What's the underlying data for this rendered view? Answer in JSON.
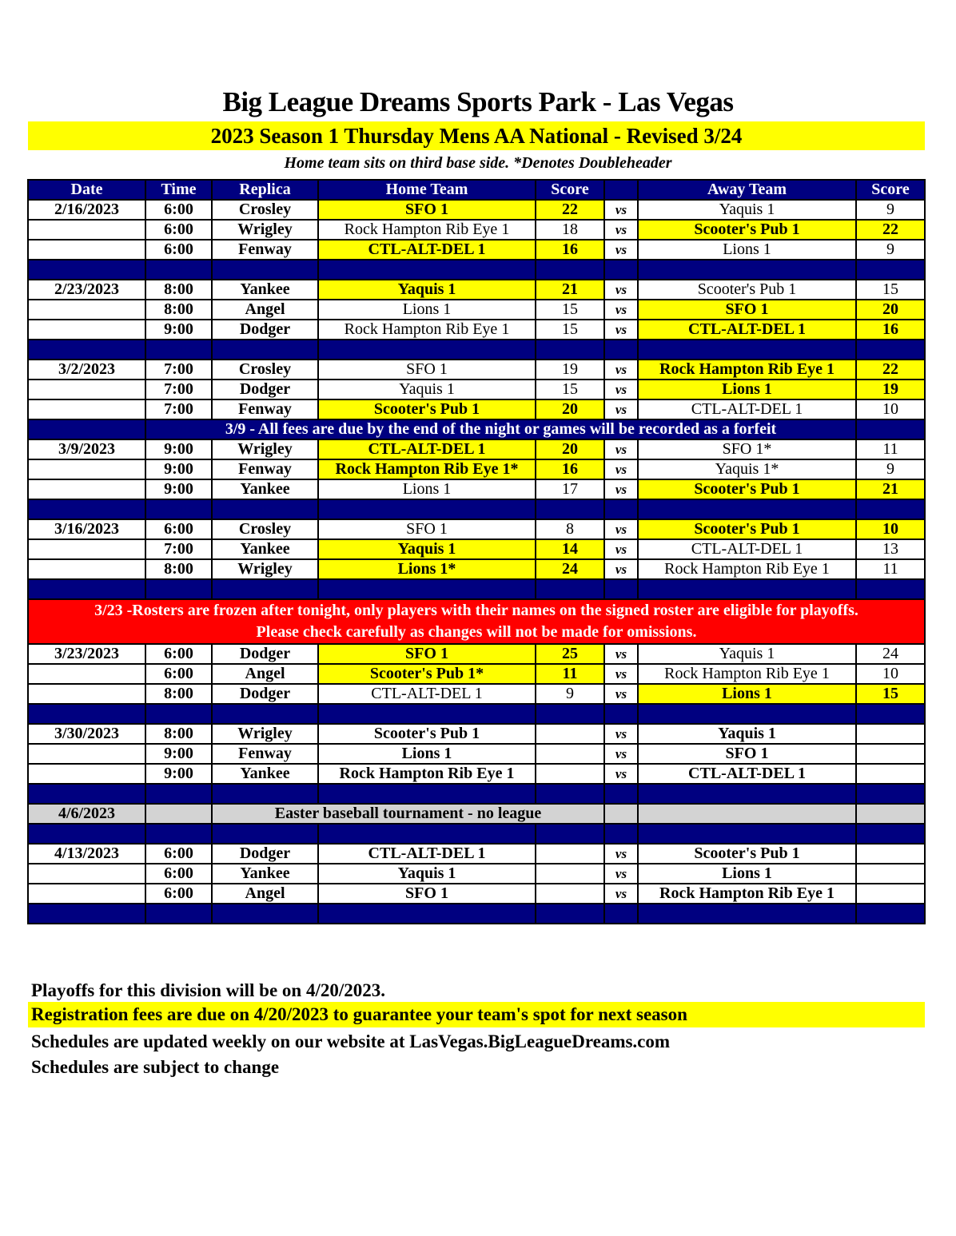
{
  "title": "Big League Dreams Sports Park - Las Vegas",
  "subtitle": "2023 Season 1 Thursday Mens AA National - Revised 3/24",
  "note": "Home team sits on third base side.  *Denotes Doubleheader",
  "colors": {
    "header": "#000080",
    "highlight": "#ffff00",
    "alert": "#ff0000",
    "off": "#d3d3d3"
  },
  "headers": [
    "Date",
    "Time",
    "Replica",
    "Home Team",
    "Score",
    "",
    "Away Team",
    "Score"
  ],
  "rows": [
    {
      "type": "game",
      "date": "2/16/2023",
      "time": "6:00",
      "field": "Crosley",
      "home": "SFO 1",
      "hs": "22",
      "vs": "vs",
      "away": "Yaquis 1",
      "as": "9",
      "winner": "home"
    },
    {
      "type": "game",
      "date": "",
      "time": "6:00",
      "field": "Wrigley",
      "home": "Rock Hampton Rib Eye 1",
      "hs": "18",
      "vs": "vs",
      "away": "Scooter's Pub 1",
      "as": "22",
      "winner": "away"
    },
    {
      "type": "game",
      "date": "",
      "time": "6:00",
      "field": "Fenway",
      "home": "CTL-ALT-DEL 1",
      "hs": "16",
      "vs": "vs",
      "away": "Lions 1",
      "as": "9",
      "winner": "home"
    },
    {
      "type": "blank"
    },
    {
      "type": "game",
      "date": "2/23/2023",
      "time": "8:00",
      "field": "Yankee",
      "home": "Yaquis 1",
      "hs": "21",
      "vs": "vs",
      "away": "Scooter's Pub 1",
      "as": "15",
      "winner": "home"
    },
    {
      "type": "game",
      "date": "",
      "time": "8:00",
      "field": "Angel",
      "home": "Lions 1",
      "hs": "15",
      "vs": "vs",
      "away": "SFO 1",
      "as": "20",
      "winner": "away"
    },
    {
      "type": "game",
      "date": "",
      "time": "9:00",
      "field": "Dodger",
      "home": "Rock Hampton Rib Eye 1",
      "hs": "15",
      "vs": "vs",
      "away": "CTL-ALT-DEL 1",
      "as": "16",
      "winner": "away"
    },
    {
      "type": "blank"
    },
    {
      "type": "game",
      "date": "3/2/2023",
      "time": "7:00",
      "field": "Crosley",
      "home": "SFO 1",
      "hs": "19",
      "vs": "vs",
      "away": "Rock Hampton Rib Eye 1",
      "as": "22",
      "winner": "away"
    },
    {
      "type": "game",
      "date": "",
      "time": "7:00",
      "field": "Dodger",
      "home": "Yaquis 1",
      "hs": "15",
      "vs": "vs",
      "away": "Lions 1",
      "as": "19",
      "winner": "away"
    },
    {
      "type": "game",
      "date": "",
      "time": "7:00",
      "field": "Fenway",
      "home": "Scooter's Pub 1",
      "hs": "20",
      "vs": "vs",
      "away": "CTL-ALT-DEL 1",
      "as": "10",
      "winner": "home"
    },
    {
      "type": "note",
      "text": "3/9 - All fees are due by the end of the night or games will be recorded as a forfeit"
    },
    {
      "type": "game",
      "date": "3/9/2023",
      "time": "9:00",
      "field": "Wrigley",
      "home": "CTL-ALT-DEL 1",
      "hs": "20",
      "vs": "vs",
      "away": "SFO 1*",
      "as": "11",
      "winner": "home"
    },
    {
      "type": "game",
      "date": "",
      "time": "9:00",
      "field": "Fenway",
      "home": "Rock Hampton Rib Eye 1*",
      "hs": "16",
      "vs": "vs",
      "away": "Yaquis 1*",
      "as": "9",
      "winner": "home"
    },
    {
      "type": "game",
      "date": "",
      "time": "9:00",
      "field": "Yankee",
      "home": "Lions 1",
      "hs": "17",
      "vs": "vs",
      "away": "Scooter's Pub 1",
      "as": "21",
      "winner": "away"
    },
    {
      "type": "blank"
    },
    {
      "type": "game",
      "date": "3/16/2023",
      "time": "6:00",
      "field": "Crosley",
      "home": "SFO 1",
      "hs": "8",
      "vs": "vs",
      "away": "Scooter's Pub 1",
      "as": "10",
      "winner": "away"
    },
    {
      "type": "game",
      "date": "",
      "time": "7:00",
      "field": "Yankee",
      "home": "Yaquis 1",
      "hs": "14",
      "vs": "vs",
      "away": "CTL-ALT-DEL 1",
      "as": "13",
      "winner": "home"
    },
    {
      "type": "game",
      "date": "",
      "time": "8:00",
      "field": "Wrigley",
      "home": "Lions 1*",
      "hs": "24",
      "vs": "vs",
      "away": "Rock Hampton Rib Eye 1",
      "as": "11",
      "winner": "home"
    },
    {
      "type": "blank"
    },
    {
      "type": "red",
      "line1": "3/23 -Rosters are frozen after tonight, only players with their names on the signed roster are eligible for playoffs.",
      "line2": "Please check carefully as changes will not be made for omissions."
    },
    {
      "type": "game",
      "date": "3/23/2023",
      "time": "6:00",
      "field": "Dodger",
      "home": "SFO 1",
      "hs": "25",
      "vs": "vs",
      "away": "Yaquis 1",
      "as": "24",
      "winner": "home"
    },
    {
      "type": "game",
      "date": "",
      "time": "6:00",
      "field": "Angel",
      "home": "Scooter's Pub 1*",
      "hs": "11",
      "vs": "vs",
      "away": "Rock Hampton Rib Eye 1",
      "as": "10",
      "winner": "home"
    },
    {
      "type": "game",
      "date": "",
      "time": "8:00",
      "field": "Dodger",
      "home": "CTL-ALT-DEL 1",
      "hs": "9",
      "vs": "vs",
      "away": "Lions 1",
      "as": "15",
      "winner": "away"
    },
    {
      "type": "blank"
    },
    {
      "type": "game",
      "date": "3/30/2023",
      "time": "8:00",
      "field": "Wrigley",
      "home": "Scooter's Pub 1",
      "hs": "",
      "vs": "vs",
      "away": "Yaquis 1",
      "as": "",
      "winner": null
    },
    {
      "type": "game",
      "date": "",
      "time": "9:00",
      "field": "Fenway",
      "home": "Lions 1",
      "hs": "",
      "vs": "vs",
      "away": "SFO 1",
      "as": "",
      "winner": null
    },
    {
      "type": "game",
      "date": "",
      "time": "9:00",
      "field": "Yankee",
      "home": "Rock Hampton Rib Eye 1",
      "hs": "",
      "vs": "vs",
      "away": "CTL-ALT-DEL 1",
      "as": "",
      "winner": null
    },
    {
      "type": "blank"
    },
    {
      "type": "off",
      "date": "4/6/2023",
      "text": "Easter baseball tournament - no league"
    },
    {
      "type": "blank"
    },
    {
      "type": "game",
      "date": "4/13/2023",
      "time": "6:00",
      "field": "Dodger",
      "home": "CTL-ALT-DEL 1",
      "hs": "",
      "vs": "vs",
      "away": "Scooter's Pub 1",
      "as": "",
      "winner": null
    },
    {
      "type": "game",
      "date": "",
      "time": "6:00",
      "field": "Yankee",
      "home": "Yaquis 1",
      "hs": "",
      "vs": "vs",
      "away": "Lions 1",
      "as": "",
      "winner": null
    },
    {
      "type": "game",
      "date": "",
      "time": "6:00",
      "field": "Angel",
      "home": "SFO 1",
      "hs": "",
      "vs": "vs",
      "away": "Rock Hampton Rib Eye 1",
      "as": "",
      "winner": null
    },
    {
      "type": "blank"
    }
  ],
  "footer": {
    "playoffs": "Playoffs for this division will be on 4/20/2023.",
    "registration": "Registration fees are due on 4/20/2023 to guarantee your team's spot for next season",
    "website": "Schedules are updated weekly on our website at LasVegas.BigLeagueDreams.com",
    "change": "Schedules are subject to change"
  }
}
